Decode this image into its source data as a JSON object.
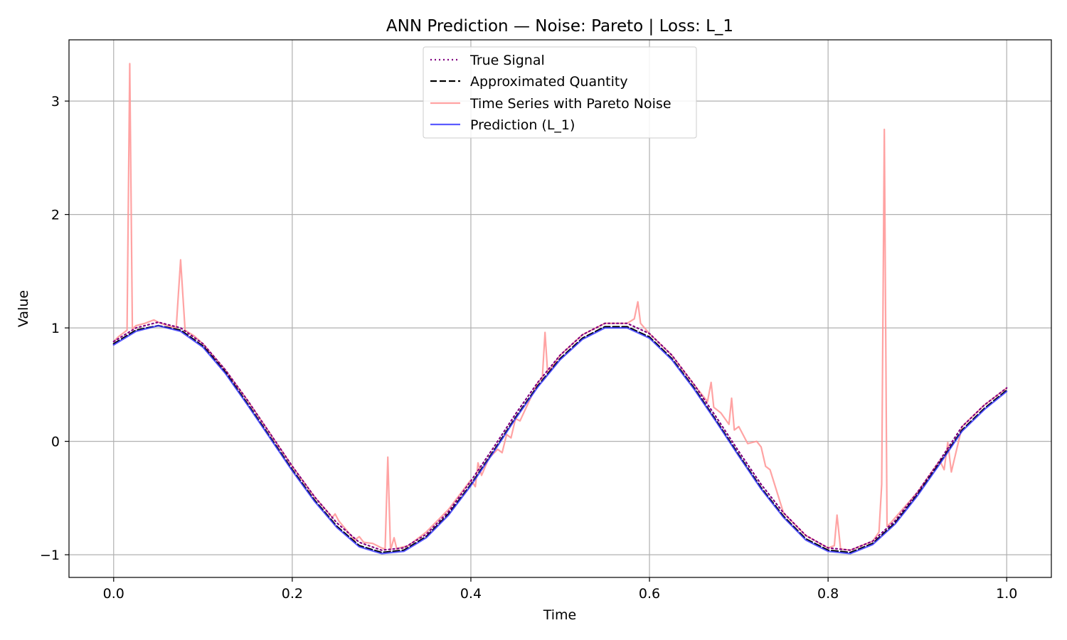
{
  "chart_data": {
    "type": "line",
    "title": "ANN Prediction — Noise: Pareto | Loss: L_1",
    "xlabel": "Time",
    "ylabel": "Value",
    "xlim": [
      -0.05,
      1.05
    ],
    "ylim": [
      -1.2,
      3.54
    ],
    "xticks": [
      0.0,
      0.2,
      0.4,
      0.6,
      0.8,
      1.0
    ],
    "xtick_labels": [
      "0.0",
      "0.2",
      "0.4",
      "0.6",
      "0.8",
      "1.0"
    ],
    "yticks": [
      -1,
      0,
      1,
      2,
      3
    ],
    "ytick_labels": [
      "−1",
      "0",
      "1",
      "2",
      "3"
    ],
    "grid": true,
    "legend_position": "top-center",
    "series": [
      {
        "name": "True Signal",
        "color": "#800080",
        "style": "dotted",
        "x": [
          0.0,
          0.025,
          0.05,
          0.075,
          0.1,
          0.125,
          0.15,
          0.175,
          0.2,
          0.225,
          0.25,
          0.275,
          0.3,
          0.325,
          0.35,
          0.375,
          0.4,
          0.425,
          0.45,
          0.475,
          0.5,
          0.525,
          0.55,
          0.575,
          0.6,
          0.625,
          0.65,
          0.675,
          0.7,
          0.725,
          0.75,
          0.775,
          0.8,
          0.825,
          0.85,
          0.875,
          0.9,
          0.925,
          0.95,
          0.975,
          1.0
        ],
        "y": [
          0.88,
          1.0,
          1.05,
          1.0,
          0.86,
          0.63,
          0.36,
          0.07,
          -0.22,
          -0.49,
          -0.72,
          -0.89,
          -0.96,
          -0.94,
          -0.82,
          -0.62,
          -0.35,
          -0.06,
          0.24,
          0.52,
          0.76,
          0.94,
          1.04,
          1.04,
          0.95,
          0.76,
          0.5,
          0.21,
          -0.09,
          -0.38,
          -0.63,
          -0.83,
          -0.94,
          -0.96,
          -0.88,
          -0.7,
          -0.45,
          -0.17,
          0.13,
          0.32,
          0.47
        ]
      },
      {
        "name": "Approximated Quantity",
        "color": "#000000",
        "style": "dashed",
        "x": [
          0.0,
          0.025,
          0.05,
          0.075,
          0.1,
          0.125,
          0.15,
          0.175,
          0.2,
          0.225,
          0.25,
          0.275,
          0.3,
          0.325,
          0.35,
          0.375,
          0.4,
          0.425,
          0.45,
          0.475,
          0.5,
          0.525,
          0.55,
          0.575,
          0.6,
          0.625,
          0.65,
          0.675,
          0.7,
          0.725,
          0.75,
          0.775,
          0.8,
          0.825,
          0.85,
          0.875,
          0.9,
          0.925,
          0.95,
          0.975,
          1.0
        ],
        "y": [
          0.86,
          0.98,
          1.02,
          0.98,
          0.84,
          0.61,
          0.33,
          0.04,
          -0.25,
          -0.52,
          -0.75,
          -0.92,
          -0.98,
          -0.96,
          -0.84,
          -0.64,
          -0.38,
          -0.09,
          0.21,
          0.49,
          0.73,
          0.91,
          1.01,
          1.01,
          0.92,
          0.73,
          0.47,
          0.18,
          -0.12,
          -0.41,
          -0.66,
          -0.86,
          -0.96,
          -0.98,
          -0.9,
          -0.72,
          -0.47,
          -0.19,
          0.1,
          0.29,
          0.45
        ]
      },
      {
        "name": "Time Series with Pareto Noise",
        "color": "#ff9999",
        "style": "solid",
        "x": [
          0.0,
          0.005,
          0.01,
          0.015,
          0.018,
          0.021,
          0.025,
          0.035,
          0.045,
          0.05,
          0.06,
          0.07,
          0.075,
          0.08,
          0.09,
          0.1,
          0.125,
          0.15,
          0.175,
          0.2,
          0.225,
          0.245,
          0.248,
          0.252,
          0.27,
          0.275,
          0.28,
          0.29,
          0.3,
          0.304,
          0.307,
          0.31,
          0.314,
          0.317,
          0.32,
          0.33,
          0.35,
          0.375,
          0.4,
          0.405,
          0.408,
          0.412,
          0.42,
          0.43,
          0.435,
          0.44,
          0.445,
          0.45,
          0.455,
          0.475,
          0.48,
          0.483,
          0.486,
          0.5,
          0.525,
          0.55,
          0.575,
          0.583,
          0.587,
          0.59,
          0.6,
          0.625,
          0.65,
          0.665,
          0.669,
          0.672,
          0.68,
          0.689,
          0.692,
          0.695,
          0.7,
          0.71,
          0.72,
          0.725,
          0.73,
          0.735,
          0.75,
          0.775,
          0.8,
          0.807,
          0.81,
          0.814,
          0.825,
          0.85,
          0.857,
          0.86,
          0.863,
          0.866,
          0.87,
          0.9,
          0.925,
          0.93,
          0.934,
          0.938,
          0.95,
          0.975,
          1.0
        ],
        "y": [
          0.88,
          0.92,
          0.95,
          0.98,
          3.33,
          0.99,
          1.02,
          1.04,
          1.07,
          1.05,
          1.02,
          1.0,
          1.6,
          0.98,
          0.93,
          0.86,
          0.63,
          0.36,
          0.07,
          -0.22,
          -0.49,
          -0.67,
          -0.64,
          -0.7,
          -0.87,
          -0.84,
          -0.89,
          -0.9,
          -0.94,
          -0.95,
          -0.14,
          -0.96,
          -0.85,
          -0.95,
          -0.94,
          -0.92,
          -0.8,
          -0.6,
          -0.34,
          -0.4,
          -0.19,
          -0.3,
          -0.15,
          -0.07,
          -0.1,
          0.06,
          0.03,
          0.2,
          0.18,
          0.52,
          0.56,
          0.96,
          0.6,
          0.76,
          0.94,
          1.04,
          1.04,
          1.08,
          1.23,
          1.04,
          0.95,
          0.76,
          0.5,
          0.35,
          0.52,
          0.3,
          0.25,
          0.15,
          0.38,
          0.1,
          0.13,
          -0.02,
          0.0,
          -0.05,
          -0.22,
          -0.25,
          -0.63,
          -0.83,
          -0.94,
          -0.92,
          -0.65,
          -0.95,
          -0.96,
          -0.88,
          -0.8,
          -0.38,
          2.75,
          -0.75,
          -0.72,
          -0.45,
          -0.17,
          -0.25,
          -0.01,
          -0.27,
          0.13,
          0.32,
          0.47
        ]
      },
      {
        "name": "Prediction (L_1)",
        "color": "#3333ff",
        "style": "solid",
        "x": [
          0.0,
          0.025,
          0.05,
          0.075,
          0.1,
          0.125,
          0.15,
          0.175,
          0.2,
          0.225,
          0.25,
          0.275,
          0.3,
          0.325,
          0.35,
          0.375,
          0.4,
          0.425,
          0.45,
          0.475,
          0.5,
          0.525,
          0.55,
          0.575,
          0.6,
          0.625,
          0.65,
          0.675,
          0.7,
          0.725,
          0.75,
          0.775,
          0.8,
          0.825,
          0.85,
          0.875,
          0.9,
          0.925,
          0.95,
          0.975,
          1.0
        ],
        "y": [
          0.85,
          0.97,
          1.02,
          0.97,
          0.83,
          0.6,
          0.32,
          0.03,
          -0.26,
          -0.53,
          -0.76,
          -0.93,
          -0.99,
          -0.97,
          -0.85,
          -0.65,
          -0.39,
          -0.1,
          0.2,
          0.48,
          0.72,
          0.9,
          1.0,
          1.0,
          0.91,
          0.72,
          0.46,
          0.17,
          -0.13,
          -0.42,
          -0.67,
          -0.87,
          -0.97,
          -0.99,
          -0.91,
          -0.73,
          -0.48,
          -0.2,
          0.09,
          0.28,
          0.44
        ]
      }
    ]
  }
}
